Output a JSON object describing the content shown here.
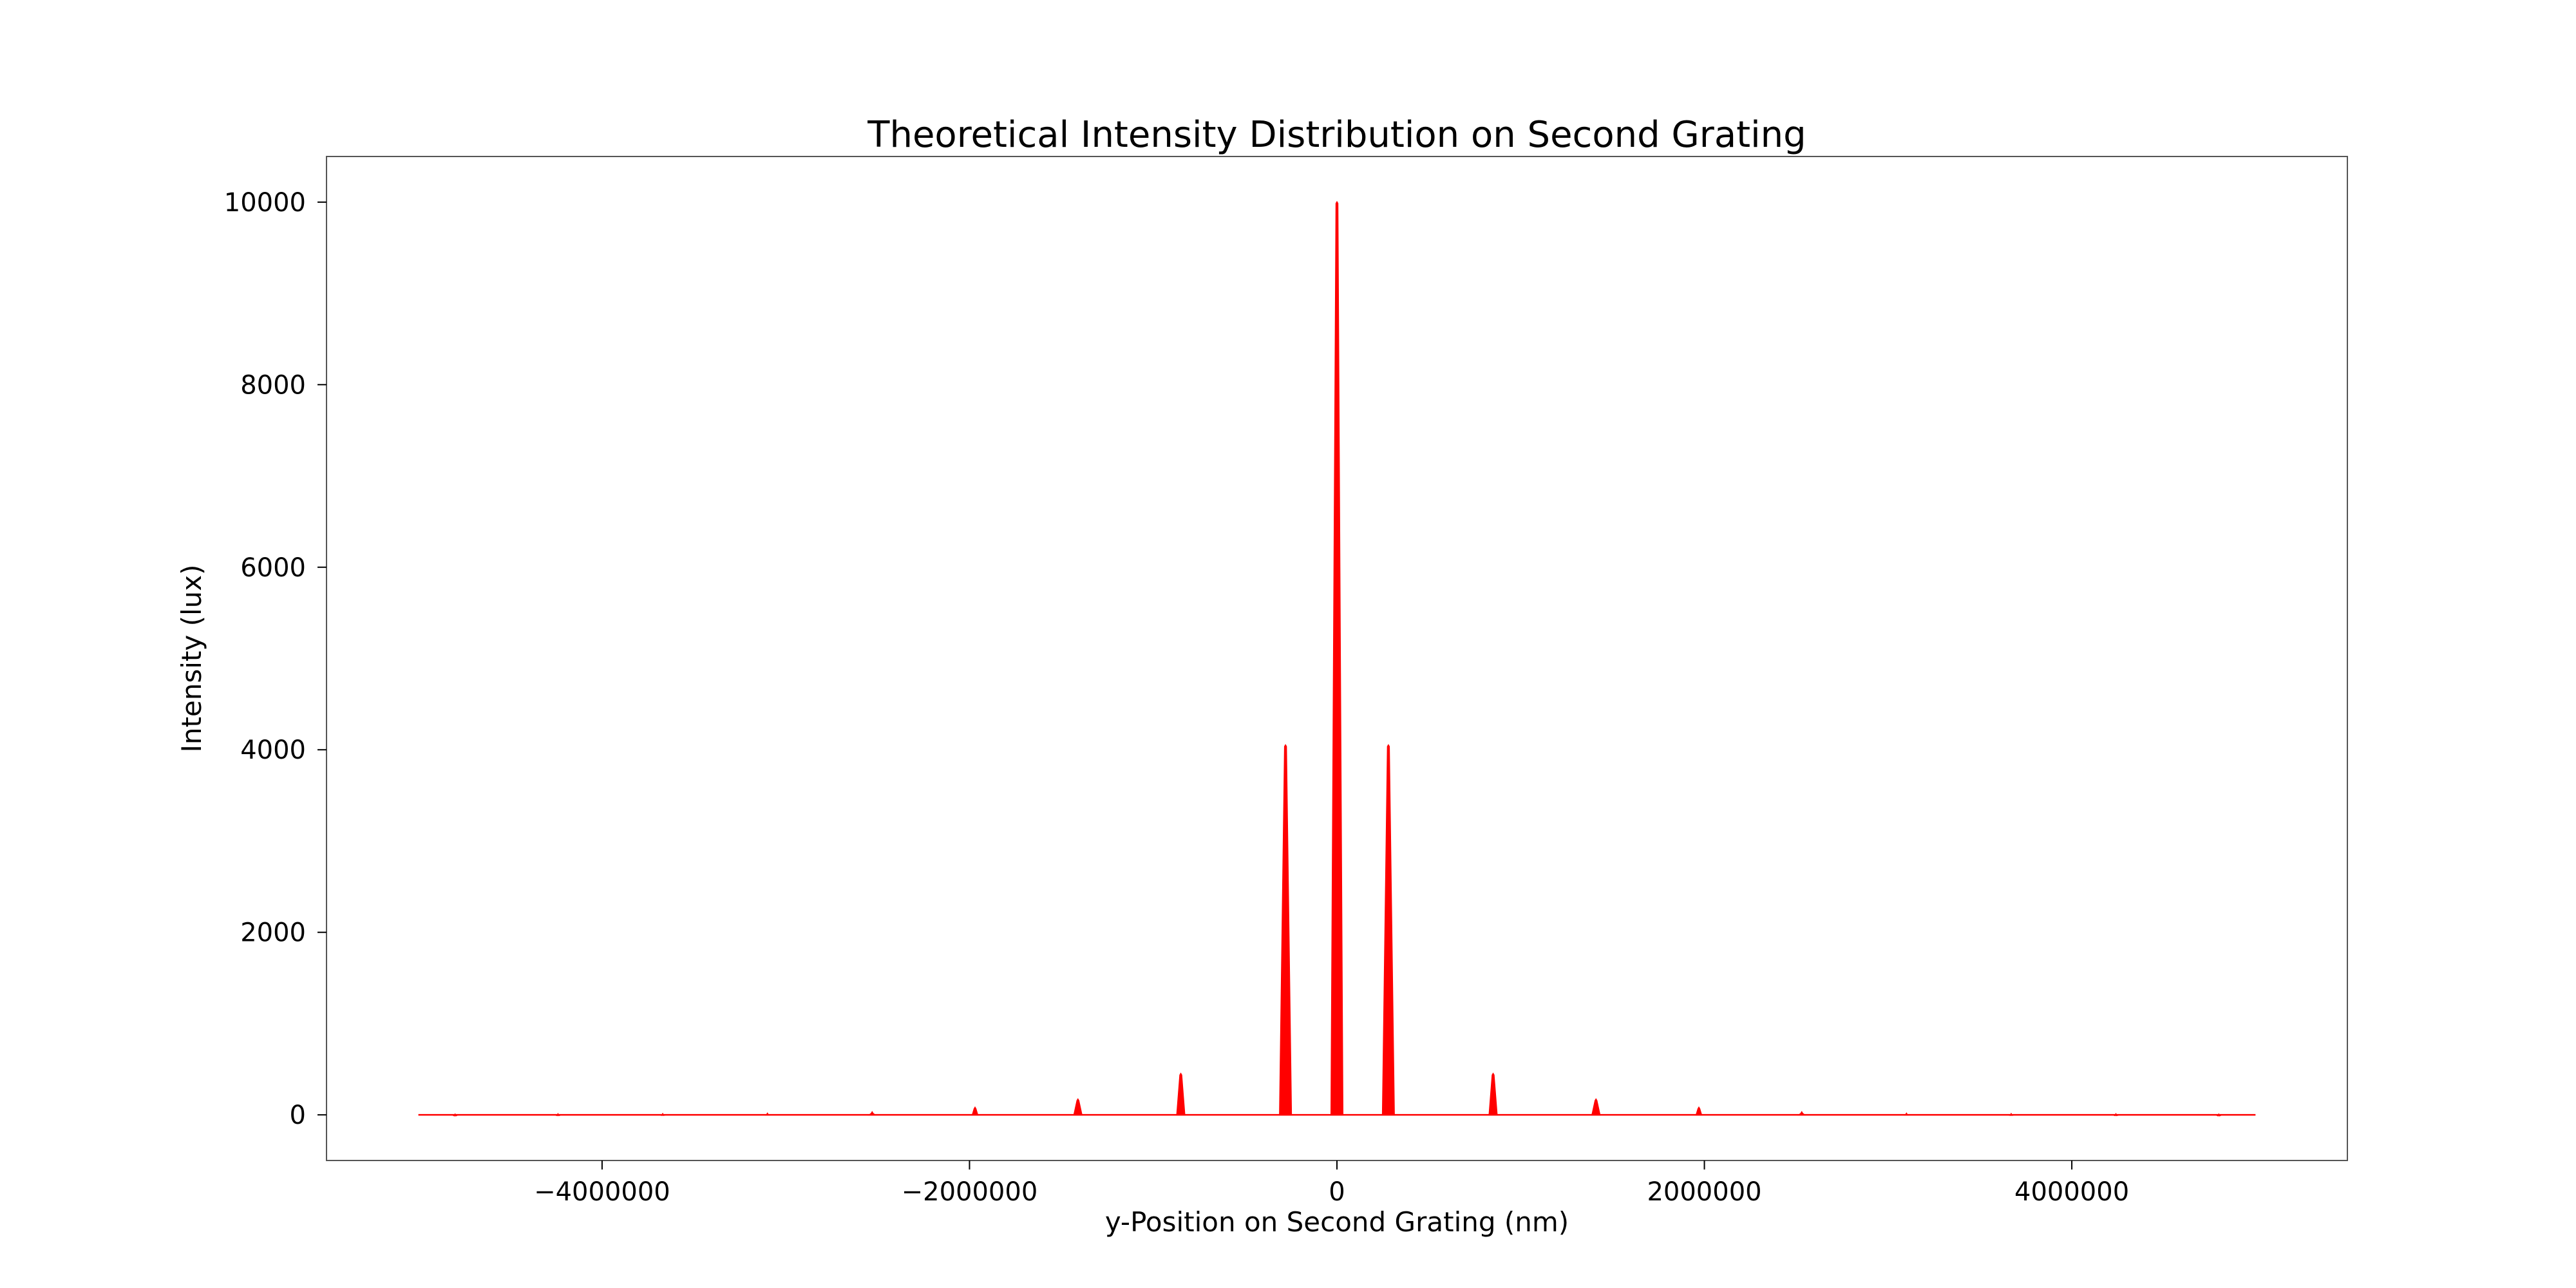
{
  "chart_data": {
    "type": "line",
    "title": "Theoretical Intensity Distribution on Second Grating",
    "xlabel": "y-Position on Second Grating (nm)",
    "ylabel": "Intensity (lux)",
    "xlim": [
      -5500000,
      5500000
    ],
    "ylim": [
      -500,
      10500
    ],
    "x_ticks": [
      -4000000,
      -2000000,
      0,
      2000000,
      4000000
    ],
    "x_tick_labels": [
      "−4000000",
      "−2000000",
      "0",
      "2000000",
      "4000000"
    ],
    "y_ticks": [
      0,
      2000,
      4000,
      6000,
      8000,
      10000
    ],
    "y_tick_labels": [
      "0",
      "2000",
      "4000",
      "6000",
      "8000",
      "10000"
    ],
    "grid": false,
    "series": [
      {
        "color": "#ff0000",
        "x_range": [
          -5000000,
          5000000
        ],
        "baseline": 0,
        "peaks": [
          {
            "x": -4800000,
            "y": 5
          },
          {
            "x": -4240000,
            "y": 8
          },
          {
            "x": -3670000,
            "y": 10
          },
          {
            "x": -3100000,
            "y": 15
          },
          {
            "x": -2530000,
            "y": 30
          },
          {
            "x": -1970000,
            "y": 80
          },
          {
            "x": -1410000,
            "y": 170
          },
          {
            "x": -850000,
            "y": 450
          },
          {
            "x": -280000,
            "y": 4050
          },
          {
            "x": 0,
            "y": 10000
          },
          {
            "x": 280000,
            "y": 4050
          },
          {
            "x": 850000,
            "y": 450
          },
          {
            "x": 1410000,
            "y": 170
          },
          {
            "x": 1970000,
            "y": 80
          },
          {
            "x": 2530000,
            "y": 30
          },
          {
            "x": 3100000,
            "y": 15
          },
          {
            "x": 3670000,
            "y": 10
          },
          {
            "x": 4240000,
            "y": 8
          },
          {
            "x": 4800000,
            "y": 5
          }
        ]
      }
    ]
  }
}
